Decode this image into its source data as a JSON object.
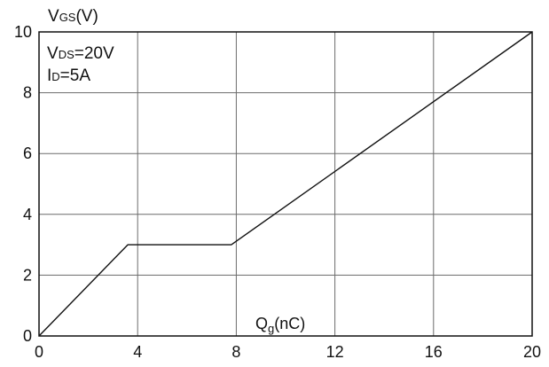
{
  "chart_data": {
    "type": "line",
    "ylabel": {
      "main": "V",
      "sub": "GS",
      "rest": "(V)"
    },
    "xlabel": {
      "main": "Q",
      "sub": "g",
      "rest": "(nC)"
    },
    "annotations": [
      {
        "main": "V",
        "sub": "DS",
        "rest": "=20V"
      },
      {
        "main": "I",
        "sub": "D",
        "rest": "=5A"
      }
    ],
    "xlim": [
      0,
      20
    ],
    "ylim": [
      0,
      10
    ],
    "xticks": [
      "0",
      "4",
      "8",
      "12",
      "16",
      "20"
    ],
    "yticks": [
      "0",
      "2",
      "4",
      "6",
      "8",
      "10"
    ],
    "grid": true,
    "series": [
      {
        "x": [
          0,
          3.6,
          7.8,
          20
        ],
        "y": [
          0,
          3.0,
          3.0,
          10
        ]
      }
    ],
    "colors": {
      "line": "#111111",
      "grid": "#6b6b6b",
      "axes": "#111111"
    }
  }
}
